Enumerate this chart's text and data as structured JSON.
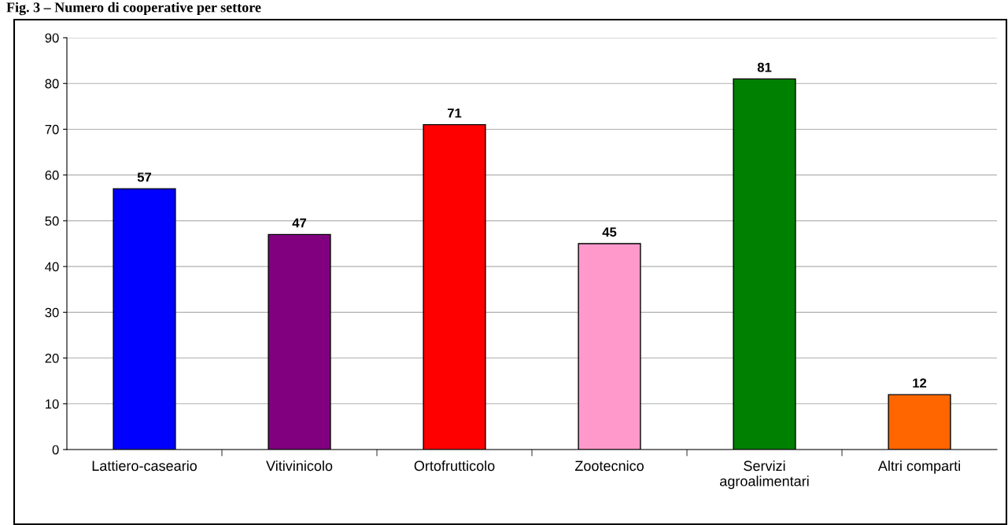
{
  "chart_data": {
    "type": "bar",
    "title": "Fig. 3 – Numero di cooperative per settore",
    "categories": [
      "Lattiero-caseario",
      "Vitivinicolo",
      "Ortofrutticolo",
      "Zootecnico",
      "Servizi\nagroalimentari",
      "Altri comparti"
    ],
    "values": [
      57,
      47,
      71,
      45,
      81,
      12
    ],
    "colors": [
      "#0000ff",
      "#800080",
      "#ff0000",
      "#ff99cc",
      "#008000",
      "#ff6600"
    ],
    "ylim": [
      0,
      90
    ],
    "yticks": [
      0,
      10,
      20,
      30,
      40,
      50,
      60,
      70,
      80,
      90
    ],
    "grid": "y",
    "data_labels": true
  }
}
